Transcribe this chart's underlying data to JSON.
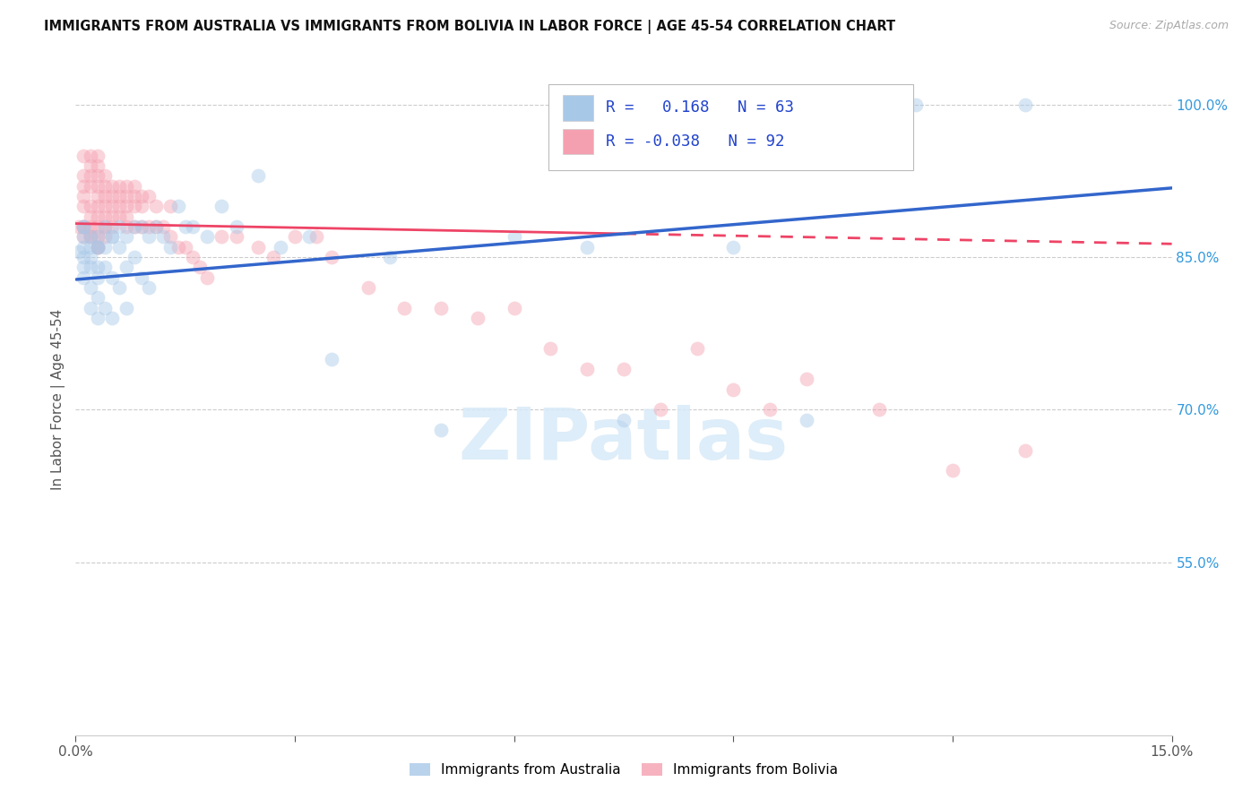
{
  "title": "IMMIGRANTS FROM AUSTRALIA VS IMMIGRANTS FROM BOLIVIA IN LABOR FORCE | AGE 45-54 CORRELATION CHART",
  "source": "Source: ZipAtlas.com",
  "ylabel": "In Labor Force | Age 45-54",
  "xlim": [
    0.0,
    0.15
  ],
  "ylim": [
    0.38,
    1.04
  ],
  "x_ticks": [
    0.0,
    0.03,
    0.06,
    0.09,
    0.12,
    0.15
  ],
  "x_tick_labels": [
    "0.0%",
    "",
    "",
    "",
    "",
    "15.0%"
  ],
  "y_ticks_right": [
    0.55,
    0.7,
    0.85,
    1.0
  ],
  "y_tick_labels_right": [
    "55.0%",
    "70.0%",
    "85.0%",
    "100.0%"
  ],
  "R_australia": 0.168,
  "N_australia": 63,
  "R_bolivia": -0.038,
  "N_bolivia": 92,
  "color_australia": "#a8c8e8",
  "color_bolivia": "#f4a0b0",
  "trendline_color_australia": "#3366cc",
  "trendline_color_bolivia": "#ee4466",
  "watermark": "ZIPatlas",
  "watermark_color": "#d8eaf8",
  "aus_x": [
    0.0005,
    0.001,
    0.001,
    0.001,
    0.001,
    0.001,
    0.001,
    0.002,
    0.002,
    0.002,
    0.002,
    0.002,
    0.002,
    0.003,
    0.003,
    0.003,
    0.003,
    0.003,
    0.003,
    0.003,
    0.004,
    0.004,
    0.004,
    0.004,
    0.005,
    0.005,
    0.005,
    0.005,
    0.006,
    0.006,
    0.006,
    0.007,
    0.007,
    0.007,
    0.008,
    0.008,
    0.009,
    0.009,
    0.01,
    0.01,
    0.011,
    0.012,
    0.013,
    0.014,
    0.015,
    0.016,
    0.018,
    0.02,
    0.022,
    0.025,
    0.028,
    0.032,
    0.035,
    0.043,
    0.05,
    0.06,
    0.07,
    0.075,
    0.09,
    0.1,
    0.115,
    0.13,
    0.001
  ],
  "aus_y": [
    0.855,
    0.87,
    0.88,
    0.85,
    0.83,
    0.86,
    0.88,
    0.86,
    0.84,
    0.82,
    0.85,
    0.8,
    0.87,
    0.86,
    0.84,
    0.83,
    0.81,
    0.79,
    0.87,
    0.86,
    0.88,
    0.86,
    0.84,
    0.8,
    0.87,
    0.83,
    0.79,
    0.87,
    0.88,
    0.86,
    0.82,
    0.84,
    0.8,
    0.87,
    0.88,
    0.85,
    0.88,
    0.83,
    0.87,
    0.82,
    0.88,
    0.87,
    0.86,
    0.9,
    0.88,
    0.88,
    0.87,
    0.9,
    0.88,
    0.93,
    0.86,
    0.87,
    0.75,
    0.85,
    0.68,
    0.87,
    0.86,
    0.69,
    0.86,
    0.69,
    1.0,
    1.0,
    0.84
  ],
  "bol_x": [
    0.0005,
    0.001,
    0.001,
    0.001,
    0.001,
    0.001,
    0.001,
    0.001,
    0.002,
    0.002,
    0.002,
    0.002,
    0.002,
    0.002,
    0.002,
    0.002,
    0.003,
    0.003,
    0.003,
    0.003,
    0.003,
    0.003,
    0.003,
    0.003,
    0.003,
    0.003,
    0.004,
    0.004,
    0.004,
    0.004,
    0.004,
    0.004,
    0.004,
    0.005,
    0.005,
    0.005,
    0.005,
    0.005,
    0.006,
    0.006,
    0.006,
    0.006,
    0.007,
    0.007,
    0.007,
    0.007,
    0.007,
    0.008,
    0.008,
    0.008,
    0.008,
    0.009,
    0.009,
    0.009,
    0.01,
    0.01,
    0.011,
    0.011,
    0.012,
    0.013,
    0.013,
    0.014,
    0.015,
    0.016,
    0.017,
    0.018,
    0.02,
    0.022,
    0.025,
    0.027,
    0.03,
    0.033,
    0.035,
    0.04,
    0.045,
    0.05,
    0.055,
    0.06,
    0.065,
    0.07,
    0.075,
    0.08,
    0.085,
    0.09,
    0.095,
    0.1,
    0.11,
    0.12,
    0.13,
    0.001,
    0.002,
    0.003
  ],
  "bol_y": [
    0.88,
    0.95,
    0.93,
    0.92,
    0.91,
    0.9,
    0.88,
    0.87,
    0.95,
    0.94,
    0.93,
    0.92,
    0.9,
    0.89,
    0.88,
    0.87,
    0.95,
    0.94,
    0.93,
    0.92,
    0.91,
    0.9,
    0.89,
    0.88,
    0.87,
    0.86,
    0.93,
    0.92,
    0.91,
    0.9,
    0.89,
    0.88,
    0.87,
    0.92,
    0.91,
    0.9,
    0.89,
    0.88,
    0.92,
    0.91,
    0.9,
    0.89,
    0.92,
    0.91,
    0.9,
    0.89,
    0.88,
    0.92,
    0.91,
    0.9,
    0.88,
    0.91,
    0.9,
    0.88,
    0.91,
    0.88,
    0.9,
    0.88,
    0.88,
    0.87,
    0.9,
    0.86,
    0.86,
    0.85,
    0.84,
    0.83,
    0.87,
    0.87,
    0.86,
    0.85,
    0.87,
    0.87,
    0.85,
    0.82,
    0.8,
    0.8,
    0.79,
    0.8,
    0.76,
    0.74,
    0.74,
    0.7,
    0.76,
    0.72,
    0.7,
    0.73,
    0.7,
    0.64,
    0.66,
    0.88,
    0.87,
    0.86
  ]
}
